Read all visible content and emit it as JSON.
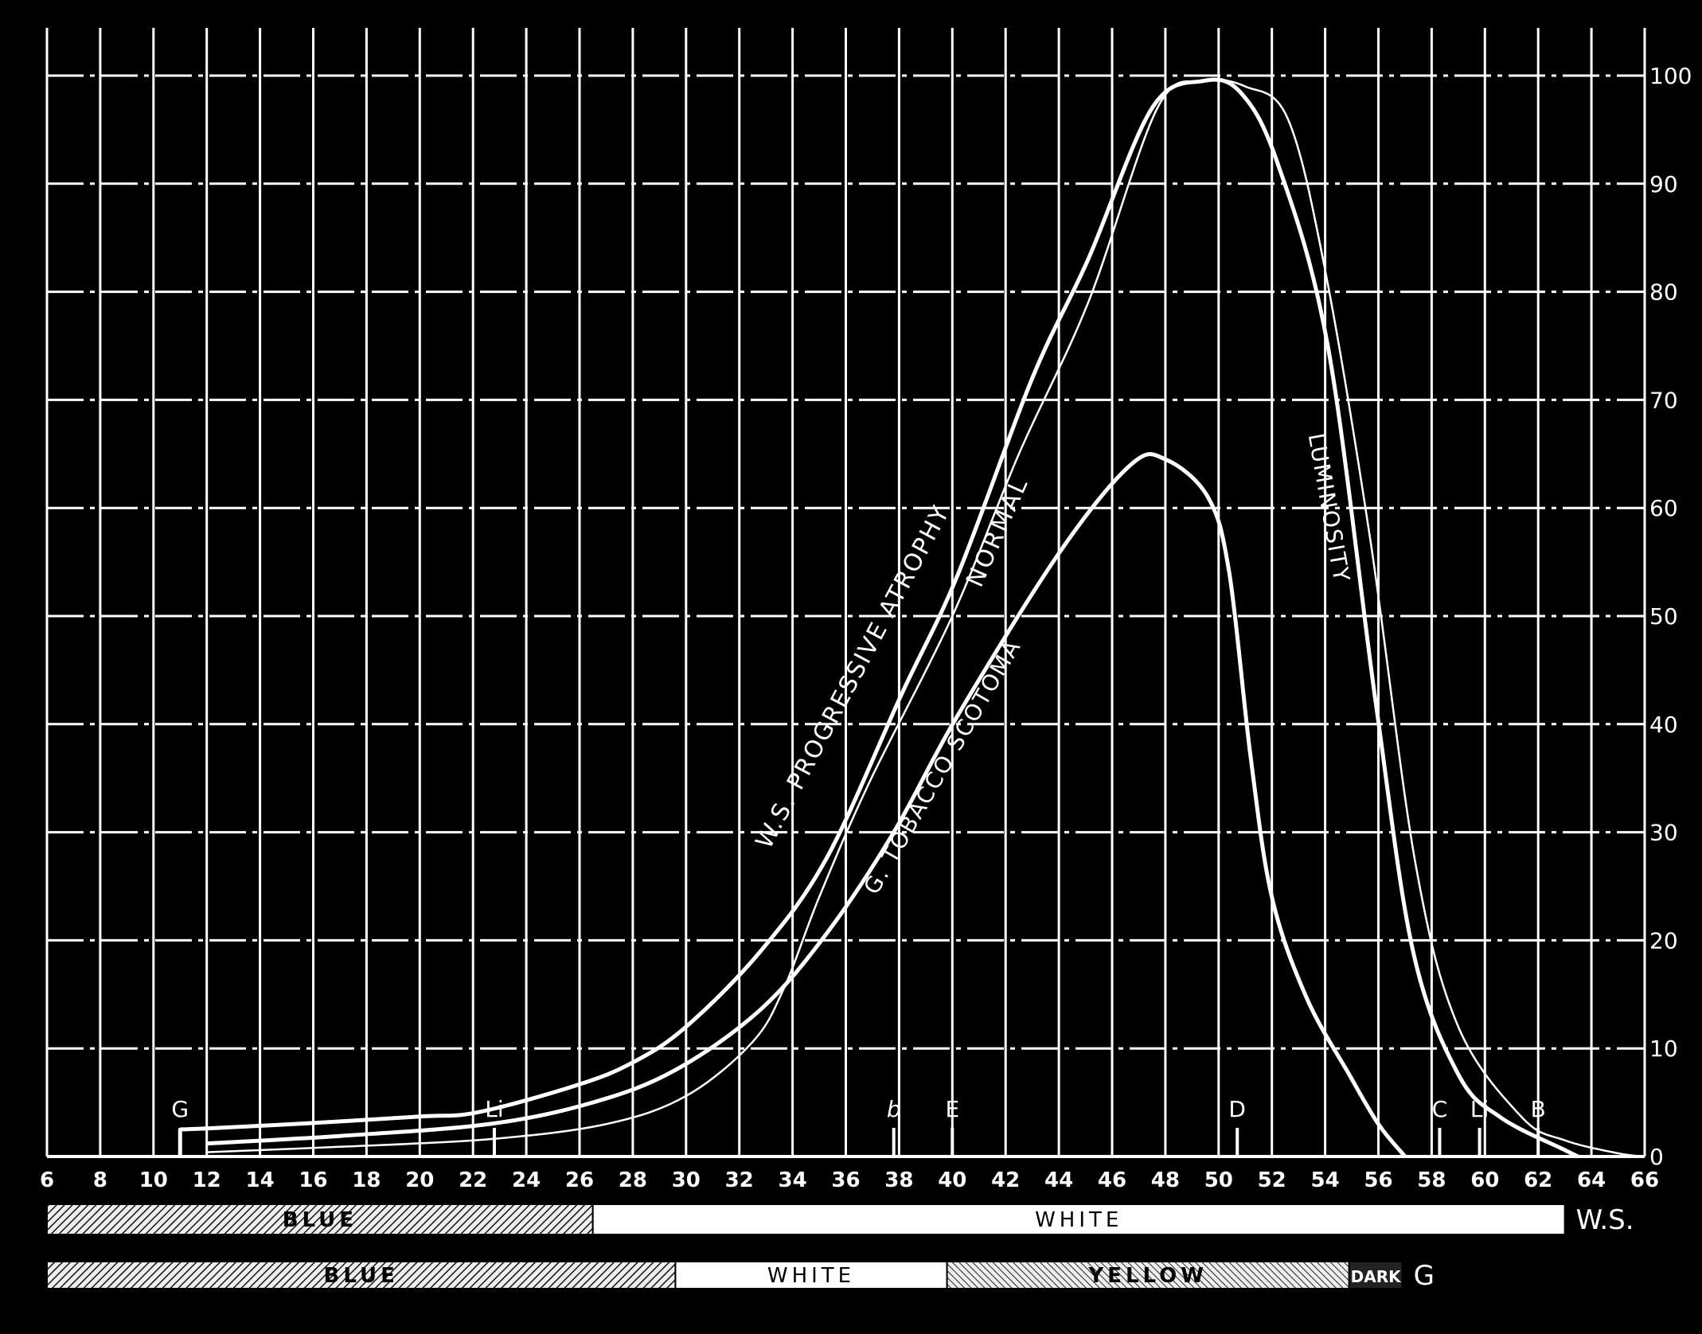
{
  "chart_data": {
    "type": "line",
    "title": "",
    "xlabel": "",
    "ylabel": "",
    "xlim": [
      6,
      66
    ],
    "ylim": [
      0,
      100
    ],
    "grid": true,
    "x_ticks": [
      6,
      8,
      10,
      12,
      14,
      16,
      18,
      20,
      22,
      24,
      26,
      28,
      30,
      32,
      34,
      36,
      38,
      40,
      42,
      44,
      46,
      48,
      50,
      52,
      54,
      56,
      58,
      60,
      62,
      64,
      66
    ],
    "y_ticks": [
      0,
      10,
      20,
      30,
      40,
      50,
      60,
      70,
      80,
      90,
      100
    ],
    "colors": {
      "background": "#000000",
      "lines": "#ffffff"
    },
    "series": [
      {
        "name": "W.S. PROGRESSIVE ATROPHY",
        "style": "thick",
        "points": [
          [
            11,
            2.5
          ],
          [
            12,
            2.6
          ],
          [
            16,
            3.1
          ],
          [
            20,
            3.7
          ],
          [
            22.2,
            4.1
          ],
          [
            25.9,
            6.6
          ],
          [
            28,
            8.7
          ],
          [
            30,
            12
          ],
          [
            32.8,
            19
          ],
          [
            35.3,
            27.7
          ],
          [
            38.1,
            42.8
          ],
          [
            40.2,
            53.8
          ],
          [
            43,
            72
          ],
          [
            45.1,
            83
          ],
          [
            47.5,
            97
          ],
          [
            49.4,
            99.5
          ],
          [
            50.8,
            98.5
          ],
          [
            52.2,
            92
          ],
          [
            54.1,
            75
          ],
          [
            55.9,
            42
          ],
          [
            57.3,
            19
          ],
          [
            59,
            7.6
          ],
          [
            60.6,
            3.6
          ],
          [
            63,
            0.6
          ],
          [
            63.5,
            0
          ]
        ]
      },
      {
        "name": "NORMAL",
        "style": "thin",
        "points": [
          [
            12,
            0.4
          ],
          [
            17,
            0.9
          ],
          [
            22.6,
            1.6
          ],
          [
            27,
            3
          ],
          [
            30,
            5.6
          ],
          [
            32.5,
            10.6
          ],
          [
            33.7,
            15.7
          ],
          [
            35,
            24
          ],
          [
            36.9,
            34.7
          ],
          [
            40,
            50
          ],
          [
            42.5,
            65
          ],
          [
            45.1,
            79
          ],
          [
            47.7,
            97
          ],
          [
            49.4,
            99.5
          ],
          [
            51,
            99
          ],
          [
            52.6,
            96
          ],
          [
            54,
            82
          ],
          [
            55.7,
            57
          ],
          [
            57.4,
            27
          ],
          [
            59,
            12
          ],
          [
            61.4,
            3.6
          ],
          [
            63,
            1.5
          ],
          [
            65,
            0.3
          ],
          [
            66,
            0
          ]
        ]
      },
      {
        "name": "G. TOBACCO SCOTOMA",
        "style": "thick",
        "points": [
          [
            12,
            1.2
          ],
          [
            17,
            1.9
          ],
          [
            22.6,
            3
          ],
          [
            26.5,
            5
          ],
          [
            29.6,
            8
          ],
          [
            32.8,
            13.6
          ],
          [
            35.3,
            20.7
          ],
          [
            37.8,
            30
          ],
          [
            40.2,
            40.8
          ],
          [
            44,
            55.8
          ],
          [
            46.7,
            64
          ],
          [
            48,
            64.5
          ],
          [
            49.6,
            61
          ],
          [
            50.4,
            54
          ],
          [
            51.2,
            37
          ],
          [
            52,
            24
          ],
          [
            53.3,
            14.7
          ],
          [
            54.9,
            7.6
          ],
          [
            56,
            3
          ],
          [
            57,
            0
          ]
        ]
      }
    ],
    "curve_labels": {
      "atrophy": "W.S.  PROGRESSIVE  ATROPHY",
      "normal": "NORMAL",
      "scotoma": "G. TOBACCO   SCOTOMA",
      "luminosity": "LUMINOSITY"
    },
    "spectral_lines": [
      {
        "label": "G",
        "x": 11
      },
      {
        "label": "Li",
        "x": 22.8
      },
      {
        "label": "b",
        "x": 37.8
      },
      {
        "label": "E",
        "x": 40
      },
      {
        "label": "D",
        "x": 50.7
      },
      {
        "label": "C",
        "x": 58.3
      },
      {
        "label": "Li",
        "x": 59.8
      },
      {
        "label": "B",
        "x": 62
      }
    ],
    "color_bands": [
      {
        "subject": "W.S.",
        "segments": [
          {
            "label": "BLUE",
            "from": 6,
            "to": 26.5,
            "fill": "hatched"
          },
          {
            "label": "WHITE",
            "from": 26.5,
            "to": 63,
            "fill": "white"
          }
        ]
      },
      {
        "subject": "G",
        "segments": [
          {
            "label": "BLUE",
            "from": 6,
            "to": 29.6,
            "fill": "hatched"
          },
          {
            "label": "WHITE",
            "from": 29.6,
            "to": 39.8,
            "fill": "white"
          },
          {
            "label": "YELLOW",
            "from": 39.8,
            "to": 54.9,
            "fill": "hatched-light"
          },
          {
            "label": "DARK",
            "from": 54.9,
            "to": 56.9,
            "fill": "dark"
          }
        ]
      }
    ]
  }
}
